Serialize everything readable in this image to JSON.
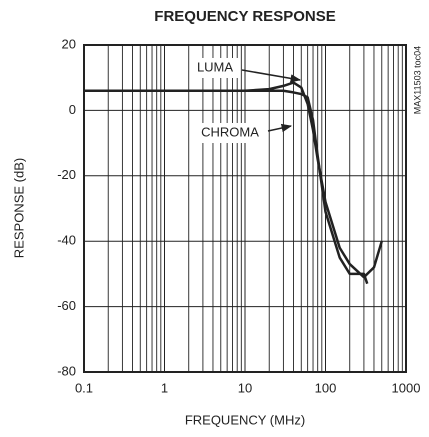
{
  "chart_data": {
    "type": "line",
    "title": "FREQUENCY RESPONSE",
    "x_label": "FREQUENCY (MHz)",
    "y_label": "RESPONSE (dB)",
    "side_note": "MAX11503 toc04",
    "xlog": true,
    "xlim": [
      0.1,
      1000
    ],
    "ylim": [
      -80,
      20
    ],
    "xticks": [
      0.1,
      1,
      10,
      100,
      1000
    ],
    "yticks": [
      -80,
      -60,
      -40,
      -20,
      0,
      20
    ],
    "grid": true,
    "series": [
      {
        "name": "LUMA",
        "color": "#222",
        "x": [
          0.1,
          1,
          10,
          20,
          30,
          40,
          50,
          60,
          70,
          80,
          100,
          150,
          200,
          300,
          400,
          500
        ],
        "values": [
          6,
          6,
          6,
          6.5,
          7.5,
          8.5,
          7,
          2,
          -6,
          -15,
          -28,
          -42,
          -47,
          -51,
          -48,
          -40
        ]
      },
      {
        "name": "CHROMA",
        "color": "#222",
        "x": [
          0.1,
          1,
          10,
          20,
          30,
          40,
          50,
          60,
          70,
          80,
          100,
          150,
          200,
          300,
          330
        ],
        "values": [
          6,
          6,
          6,
          6,
          6,
          5.5,
          5,
          4,
          -3,
          -14,
          -31,
          -45,
          -50,
          -50,
          -53
        ]
      }
    ]
  }
}
